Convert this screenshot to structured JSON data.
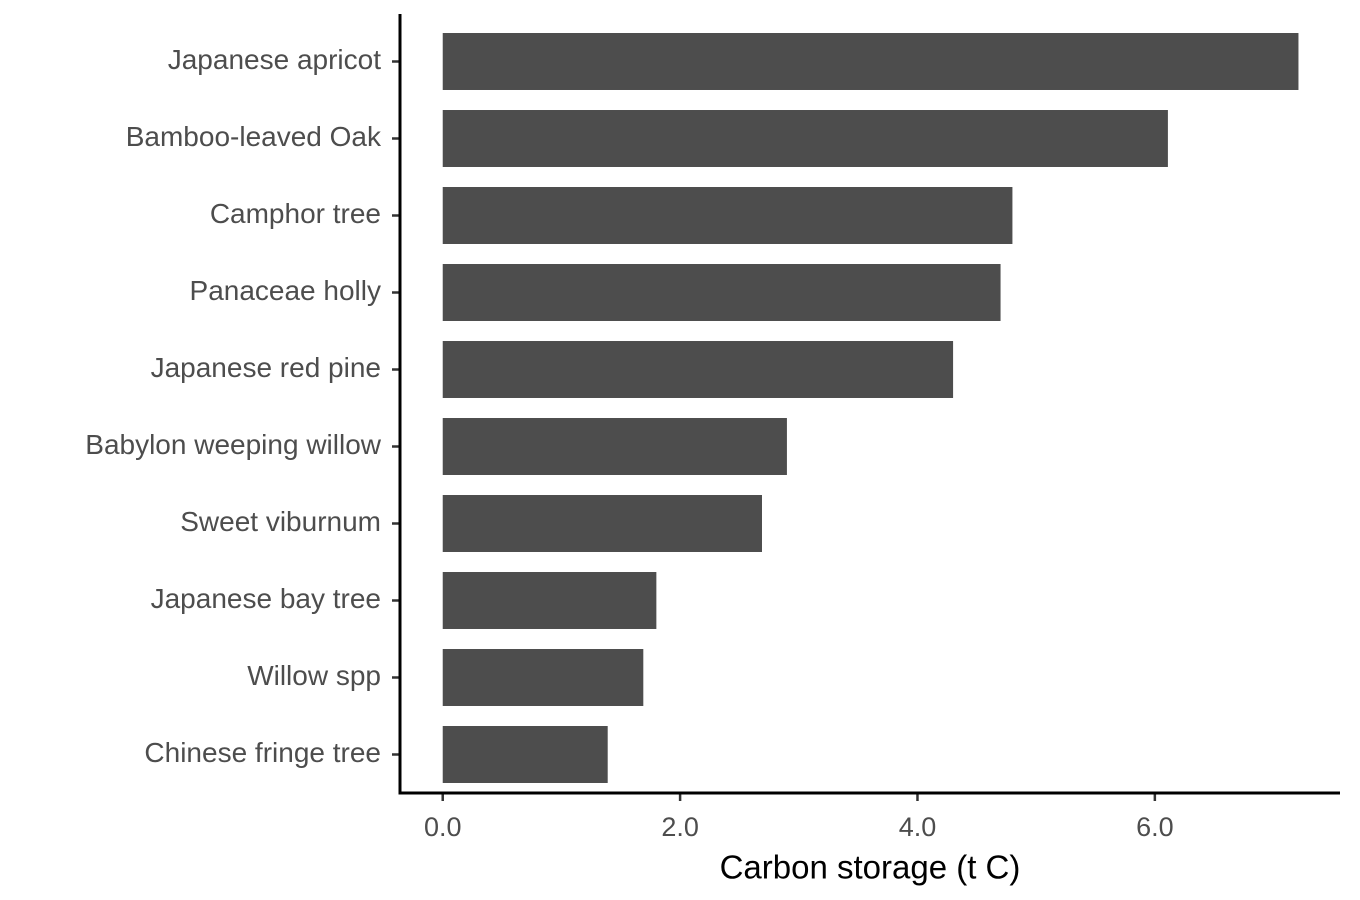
{
  "chart_data": {
    "type": "bar",
    "orientation": "horizontal",
    "xlabel": "Carbon storage (t C)",
    "categories": [
      "Japanese apricot",
      "Bamboo-leaved Oak",
      "Camphor tree",
      "Panaceae holly",
      "Japanese red pine",
      "Babylon weeping willow",
      "Sweet viburnum",
      "Japanese bay tree",
      "Willow spp",
      "Chinese fringe tree"
    ],
    "values": [
      7.21,
      6.11,
      4.8,
      4.7,
      4.3,
      2.9,
      2.69,
      1.8,
      1.69,
      1.39
    ],
    "color": "#4d4d4d",
    "xlim": [
      -0.36,
      7.56
    ],
    "xticks": [
      {
        "value": 0,
        "label": "0.0"
      },
      {
        "value": 2,
        "label": "2.0"
      },
      {
        "value": 4,
        "label": "4.0"
      },
      {
        "value": 6,
        "label": "6.0"
      }
    ]
  }
}
